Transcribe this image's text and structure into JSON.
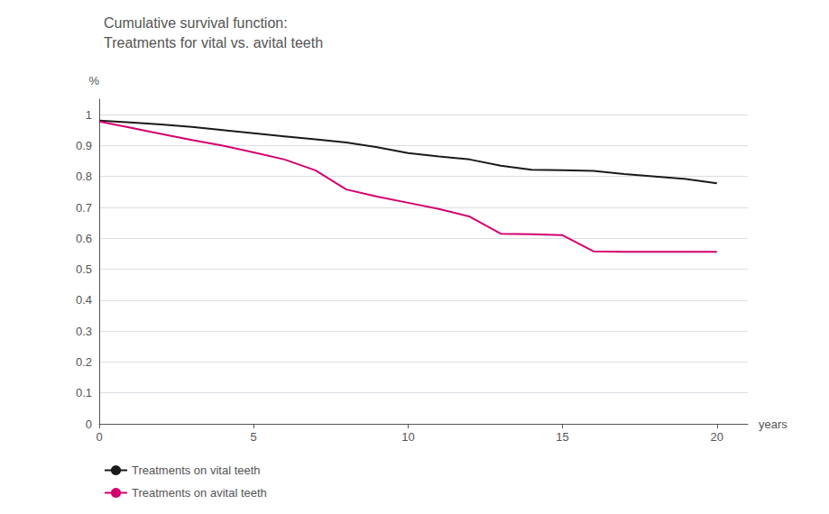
{
  "chart_data": {
    "type": "line",
    "title": "Cumulative survival function:",
    "subtitle": "Treatments for vital vs. avital teeth",
    "xlabel": "years",
    "ylabel": "%",
    "x": [
      0,
      1,
      2,
      3,
      4,
      5,
      6,
      7,
      8,
      9,
      10,
      11,
      12,
      13,
      14,
      15,
      16,
      17,
      18,
      19,
      20
    ],
    "series": [
      {
        "name": "Treatments on vital teeth",
        "color": "#1a1a1a",
        "values": [
          0.981,
          0.975,
          0.968,
          0.96,
          0.95,
          0.94,
          0.93,
          0.92,
          0.91,
          0.895,
          0.876,
          0.865,
          0.855,
          0.835,
          0.822,
          0.82,
          0.818,
          0.808,
          0.8,
          0.792,
          0.778
        ]
      },
      {
        "name": "Treatments on avital teeth",
        "color": "#d4006e",
        "values": [
          0.978,
          0.958,
          0.938,
          0.918,
          0.9,
          0.878,
          0.855,
          0.82,
          0.758,
          0.735,
          0.715,
          0.695,
          0.67,
          0.615,
          0.613,
          0.61,
          0.558,
          0.556,
          0.556,
          0.556,
          0.556
        ]
      }
    ],
    "xlim": [
      0,
      21
    ],
    "ylim": [
      0,
      1.05
    ],
    "xticks": [
      0,
      5,
      10,
      15,
      20
    ],
    "yticks": [
      0,
      0.1,
      0.2,
      0.3,
      0.4,
      0.5,
      0.6,
      0.7,
      0.8,
      0.9,
      1
    ],
    "grid": true,
    "legend": "bottom left"
  }
}
